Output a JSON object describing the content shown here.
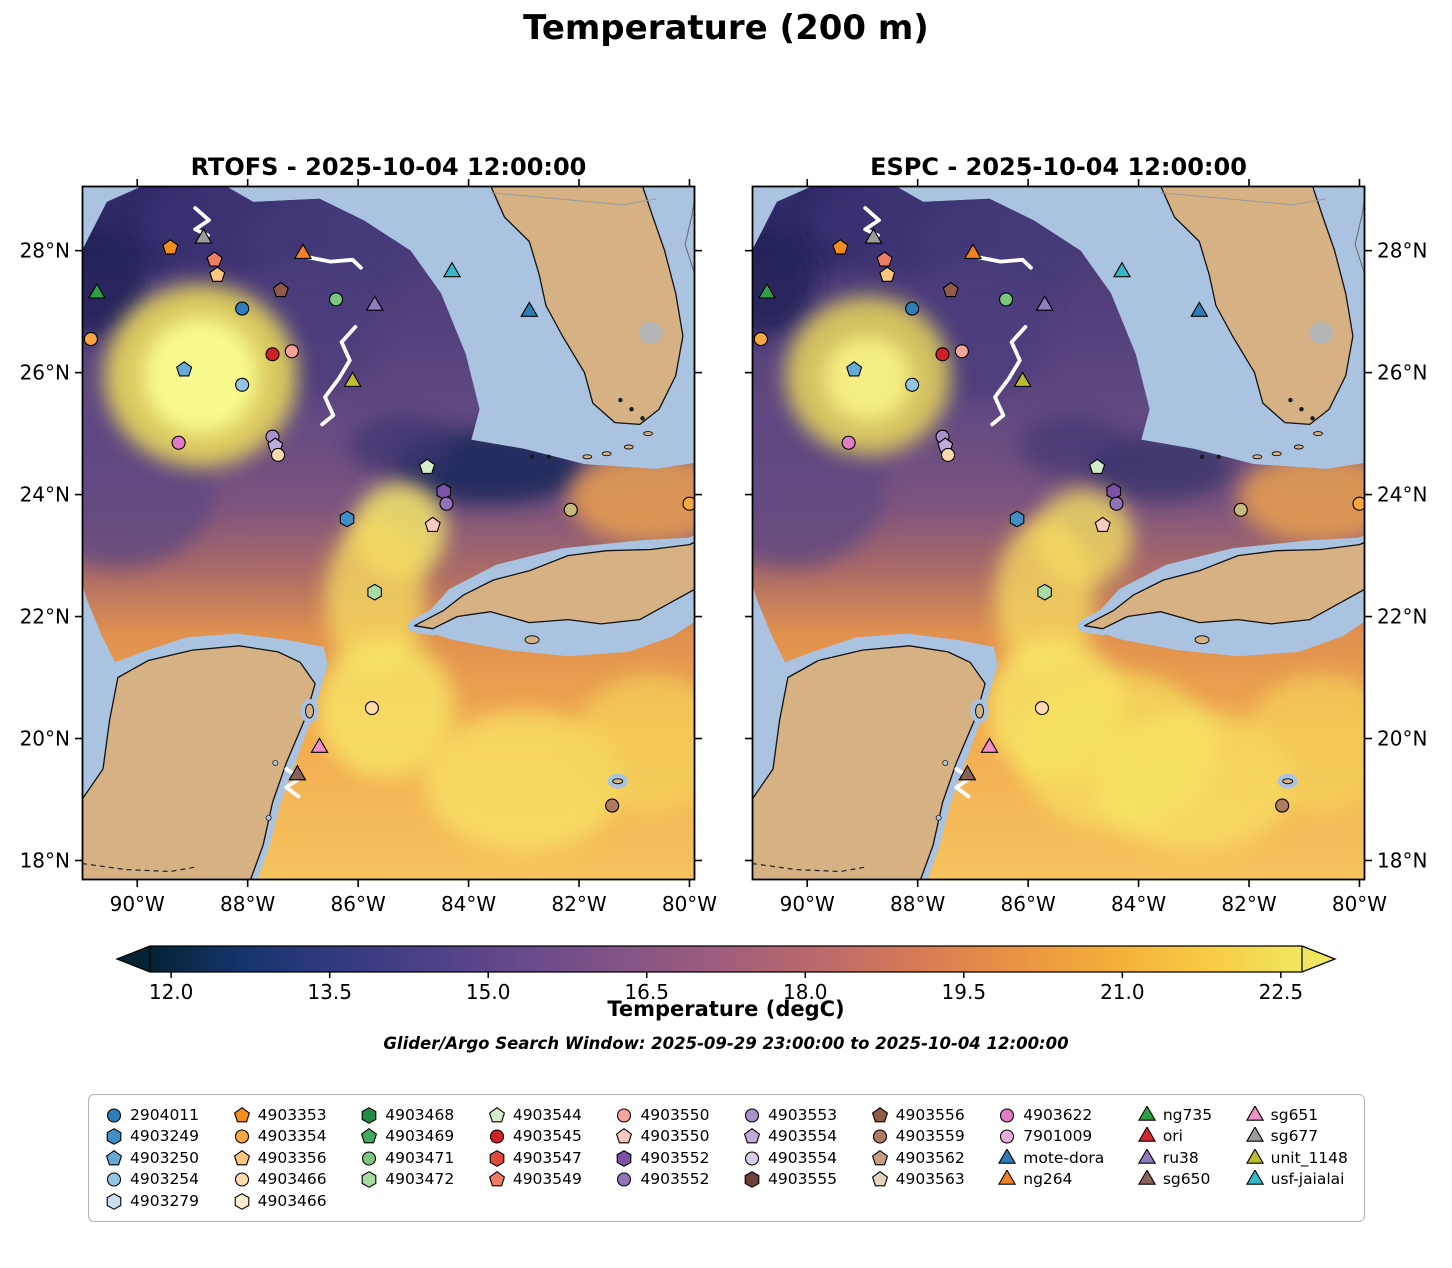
{
  "figure": {
    "title": "Temperature (200 m)",
    "caption": "Glider/Argo Search Window: 2025-09-29 23:00:00 to 2025-10-04 12:00:00"
  },
  "chart_data": {
    "type": "heatmap",
    "subtype": "geographic-temperature-field-model-comparison",
    "region": "Gulf of Mexico",
    "lon_range": [
      -91.0,
      -79.9
    ],
    "lat_range": [
      17.68,
      29.06
    ],
    "x_ticks": [
      {
        "lon": -90,
        "label": "90°W"
      },
      {
        "lon": -88,
        "label": "88°W"
      },
      {
        "lon": -86,
        "label": "86°W"
      },
      {
        "lon": -84,
        "label": "84°W"
      },
      {
        "lon": -82,
        "label": "82°W"
      },
      {
        "lon": -80,
        "label": "80°W"
      }
    ],
    "y_ticks": [
      {
        "lat": 28,
        "label": "28°N"
      },
      {
        "lat": 26,
        "label": "26°N"
      },
      {
        "lat": 24,
        "label": "24°N"
      },
      {
        "lat": 22,
        "label": "22°N"
      },
      {
        "lat": 20,
        "label": "20°N"
      },
      {
        "lat": 18,
        "label": "18°N"
      }
    ],
    "colorbar": {
      "label": "Temperature (degC)",
      "units": "degC",
      "ticks": [
        12.0,
        13.5,
        15.0,
        16.5,
        18.0,
        19.5,
        21.0,
        22.5
      ],
      "vmin": 11.8,
      "vmax": 22.7,
      "extend": "both",
      "colors": [
        "#042333",
        "#15356e",
        "#343a80",
        "#4f4288",
        "#6a4b8a",
        "#855486",
        "#a05e7b",
        "#bc6a6a",
        "#d67b55",
        "#e89343",
        "#f3ae39",
        "#f8ca43",
        "#f0e65f"
      ]
    },
    "colors": {
      "ocean_mask": "#a9c3e1",
      "land": "#d6b184",
      "coastline": "#111111",
      "lake": "#b5b5b5",
      "track": "#ffffff"
    },
    "field_base_stops": [
      [
        0,
        "#463a76"
      ],
      [
        0.2,
        "#52407c"
      ],
      [
        0.34,
        "#634a82"
      ],
      [
        0.46,
        "#7d547f"
      ],
      [
        0.55,
        "#a96a68"
      ],
      [
        0.64,
        "#e0904f"
      ],
      [
        0.78,
        "#f2ab50"
      ],
      [
        1,
        "#f6c55e"
      ]
    ],
    "panels": [
      {
        "id": "rtofs",
        "title": "RTOFS - 2025-10-04 12:00:00",
        "ylabel_side": "left",
        "blobs": [
          {
            "lon": -90.2,
            "lat": 28.6,
            "rx": 1.7,
            "ry": 1.0,
            "color": "#2f2b66",
            "opacity": 0.9
          },
          {
            "lon": -90.85,
            "lat": 27.5,
            "rx": 1.0,
            "ry": 0.9,
            "color": "#232058",
            "opacity": 0.85
          },
          {
            "lon": -88.2,
            "lat": 28.5,
            "rx": 1.7,
            "ry": 0.9,
            "color": "#3a3372",
            "opacity": 0.8
          },
          {
            "lon": -86.5,
            "lat": 28.1,
            "rx": 1.5,
            "ry": 0.9,
            "color": "#453a79",
            "opacity": 0.7
          },
          {
            "lon": -86.9,
            "lat": 26.7,
            "rx": 1.3,
            "ry": 1.1,
            "color": "#4c3c7c",
            "opacity": 0.8
          },
          {
            "lon": -90.3,
            "lat": 24.1,
            "rx": 1.7,
            "ry": 1.3,
            "color": "#5c4682",
            "opacity": 0.75
          },
          {
            "lon": -88.85,
            "lat": 25.95,
            "rx": 1.75,
            "ry": 1.5,
            "color": "#e8d75c",
            "opacity": 0.9
          },
          {
            "lon": -88.85,
            "lat": 25.95,
            "rx": 1.05,
            "ry": 0.95,
            "color": "#f9fa8e",
            "opacity": 1
          },
          {
            "lon": -83.6,
            "lat": 24.45,
            "rx": 1.7,
            "ry": 0.62,
            "color": "#1f2c5c",
            "opacity": 0.9
          },
          {
            "lon": -85.2,
            "lat": 24.8,
            "rx": 0.95,
            "ry": 0.5,
            "color": "#3b366f",
            "opacity": 0.7
          },
          {
            "lon": -85.25,
            "lat": 23.4,
            "rx": 0.85,
            "ry": 0.8,
            "color": "#f3e76a",
            "opacity": 0.85
          },
          {
            "lon": -85.7,
            "lat": 22.3,
            "rx": 0.9,
            "ry": 1.3,
            "color": "#f5d85e",
            "opacity": 0.8
          },
          {
            "lon": -85.5,
            "lat": 20.5,
            "rx": 1.25,
            "ry": 1.15,
            "color": "#f7e766",
            "opacity": 0.8
          },
          {
            "lon": -83.0,
            "lat": 19.3,
            "rx": 1.8,
            "ry": 1.15,
            "color": "#f7e766",
            "opacity": 0.7
          },
          {
            "lon": -80.7,
            "lat": 19.9,
            "rx": 1.4,
            "ry": 1.15,
            "color": "#f4d65a",
            "opacity": 0.65
          },
          {
            "lon": -80.7,
            "lat": 23.95,
            "rx": 1.5,
            "ry": 0.75,
            "color": "#f0a44c",
            "opacity": 0.8
          }
        ]
      },
      {
        "id": "espc",
        "title": "ESPC - 2025-10-04 12:00:00",
        "ylabel_side": "right",
        "blobs": [
          {
            "lon": -90.2,
            "lat": 28.6,
            "rx": 1.7,
            "ry": 1.0,
            "color": "#2f2b66",
            "opacity": 0.9
          },
          {
            "lon": -90.85,
            "lat": 27.5,
            "rx": 1.0,
            "ry": 0.9,
            "color": "#232058",
            "opacity": 0.85
          },
          {
            "lon": -88.2,
            "lat": 28.5,
            "rx": 1.7,
            "ry": 0.9,
            "color": "#3a3372",
            "opacity": 0.8
          },
          {
            "lon": -86.5,
            "lat": 28.1,
            "rx": 1.5,
            "ry": 0.9,
            "color": "#453a79",
            "opacity": 0.7
          },
          {
            "lon": -86.9,
            "lat": 26.7,
            "rx": 1.3,
            "ry": 1.1,
            "color": "#4c3c7c",
            "opacity": 0.8
          },
          {
            "lon": -90.3,
            "lat": 24.1,
            "rx": 1.7,
            "ry": 1.3,
            "color": "#5c4682",
            "opacity": 0.75
          },
          {
            "lon": -88.9,
            "lat": 25.95,
            "rx": 1.5,
            "ry": 1.3,
            "color": "#e8d75c",
            "opacity": 0.85
          },
          {
            "lon": -88.9,
            "lat": 25.9,
            "rx": 0.8,
            "ry": 0.7,
            "color": "#f7f185",
            "opacity": 0.95
          },
          {
            "lon": -83.6,
            "lat": 24.45,
            "rx": 1.3,
            "ry": 0.55,
            "color": "#2e3168",
            "opacity": 0.7
          },
          {
            "lon": -85.2,
            "lat": 24.8,
            "rx": 0.95,
            "ry": 0.5,
            "color": "#3b366f",
            "opacity": 0.6
          },
          {
            "lon": -85.0,
            "lat": 23.3,
            "rx": 0.9,
            "ry": 0.8,
            "color": "#f2dd62",
            "opacity": 0.8
          },
          {
            "lon": -85.7,
            "lat": 22.3,
            "rx": 0.9,
            "ry": 1.3,
            "color": "#f5d85e",
            "opacity": 0.8
          },
          {
            "lon": -85.5,
            "lat": 20.5,
            "rx": 1.25,
            "ry": 1.15,
            "color": "#f7e766",
            "opacity": 0.8
          },
          {
            "lon": -84.4,
            "lat": 19.8,
            "rx": 1.8,
            "ry": 1.3,
            "color": "#f6e25f",
            "opacity": 0.7
          },
          {
            "lon": -83.0,
            "lat": 19.3,
            "rx": 1.8,
            "ry": 1.15,
            "color": "#f7e766",
            "opacity": 0.65
          },
          {
            "lon": -80.7,
            "lat": 19.9,
            "rx": 1.4,
            "ry": 1.15,
            "color": "#f4d65a",
            "opacity": 0.65
          },
          {
            "lon": -80.7,
            "lat": 23.95,
            "rx": 1.5,
            "ry": 0.75,
            "color": "#f0a44c",
            "opacity": 0.8
          }
        ]
      }
    ],
    "legend_columns": [
      [
        {
          "label": "2904011",
          "shape": "circle",
          "color": "#2e7ebc"
        },
        {
          "label": "4903249",
          "shape": "hexagon",
          "color": "#3f8fc5"
        },
        {
          "label": "4903250",
          "shape": "pentagon",
          "color": "#66abd8"
        },
        {
          "label": "4903254",
          "shape": "circle",
          "color": "#93c4e4"
        },
        {
          "label": "4903279",
          "shape": "hexagon",
          "color": "#c9def1"
        }
      ],
      [
        {
          "label": "4903353",
          "shape": "pentagon",
          "color": "#f28d1e"
        },
        {
          "label": "4903354",
          "shape": "circle",
          "color": "#f9a743"
        },
        {
          "label": "4903356",
          "shape": "pentagon",
          "color": "#fcc57e"
        },
        {
          "label": "4903466",
          "shape": "circle",
          "color": "#fdd9ab"
        },
        {
          "label": "4903466",
          "shape": "hexagon",
          "color": "#feeccf"
        }
      ],
      [
        {
          "label": "4903468",
          "shape": "hexagon",
          "color": "#238b45"
        },
        {
          "label": "4903469",
          "shape": "pentagon",
          "color": "#41a85c"
        },
        {
          "label": "4903471",
          "shape": "circle",
          "color": "#79c67c"
        },
        {
          "label": "4903472",
          "shape": "hexagon",
          "color": "#a8dba2"
        }
      ],
      [
        {
          "label": "4903544",
          "shape": "pentagon",
          "color": "#d2ecc8"
        },
        {
          "label": "4903545",
          "shape": "circle",
          "color": "#cf2128"
        },
        {
          "label": "4903547",
          "shape": "hexagon",
          "color": "#df4b3b"
        },
        {
          "label": "4903549",
          "shape": "pentagon",
          "color": "#ee7d66"
        }
      ],
      [
        {
          "label": "4903550",
          "shape": "circle",
          "color": "#f7a49d"
        },
        {
          "label": "4903550",
          "shape": "pentagon",
          "color": "#fbc9c2"
        },
        {
          "label": "4903552",
          "shape": "hexagon",
          "color": "#7b52a5"
        },
        {
          "label": "4903552",
          "shape": "circle",
          "color": "#9273b9"
        }
      ],
      [
        {
          "label": "4903553",
          "shape": "circle",
          "color": "#a991ca"
        },
        {
          "label": "4903554",
          "shape": "pentagon",
          "color": "#c0abd9"
        },
        {
          "label": "4903554",
          "shape": "circle",
          "color": "#d9cce9"
        },
        {
          "label": "4903555",
          "shape": "hexagon",
          "color": "#6f4136"
        }
      ],
      [
        {
          "label": "4903556",
          "shape": "pentagon",
          "color": "#905b47"
        },
        {
          "label": "4903559",
          "shape": "circle",
          "color": "#ac7b61"
        },
        {
          "label": "4903562",
          "shape": "pentagon",
          "color": "#c89e82"
        },
        {
          "label": "4903563",
          "shape": "pentagon",
          "color": "#e6d3be"
        }
      ],
      [
        {
          "label": "4903622",
          "shape": "circle",
          "color": "#e07cc3"
        },
        {
          "label": "7901009",
          "shape": "circle",
          "color": "#eeacda"
        },
        {
          "label": "mote-dora",
          "shape": "triangle",
          "color": "#2d7db8"
        },
        {
          "label": "ng264",
          "shape": "triangle",
          "color": "#f58220"
        }
      ],
      [
        {
          "label": "ng735",
          "shape": "triangle",
          "color": "#2f9e44"
        },
        {
          "label": "ori",
          "shape": "triangle",
          "color": "#d7282f"
        },
        {
          "label": "ru38",
          "shape": "triangle",
          "color": "#8f7bc0"
        },
        {
          "label": "sg650",
          "shape": "triangle",
          "color": "#8a6357"
        }
      ],
      [
        {
          "label": "sg651",
          "shape": "triangle",
          "color": "#f090c8"
        },
        {
          "label": "sg677",
          "shape": "triangle",
          "color": "#9c9c9c"
        },
        {
          "label": "unit_1148",
          "shape": "triangle",
          "color": "#bcbc2e"
        },
        {
          "label": "usf-jaialai",
          "shape": "triangle",
          "color": "#35b8c8"
        }
      ]
    ],
    "markers": [
      {
        "id": "ng735",
        "shape": "triangle",
        "color": "#2f9e44",
        "lon": -90.73,
        "lat": 27.3
      },
      {
        "id": "4903354",
        "shape": "circle",
        "color": "#f9a743",
        "lon": -90.84,
        "lat": 26.55
      },
      {
        "id": "4903353",
        "shape": "pentagon",
        "color": "#f28d1e",
        "lon": -89.4,
        "lat": 28.05
      },
      {
        "id": "sg677",
        "shape": "triangle",
        "color": "#9c9c9c",
        "lon": -88.8,
        "lat": 28.2
      },
      {
        "id": "4903549",
        "shape": "pentagon",
        "color": "#ee7d66",
        "lon": -88.6,
        "lat": 27.85
      },
      {
        "id": "4903356",
        "shape": "pentagon",
        "color": "#fcc57e",
        "lon": -88.55,
        "lat": 27.6
      },
      {
        "id": "ng264",
        "shape": "triangle",
        "color": "#f58220",
        "lon": -87.0,
        "lat": 27.95
      },
      {
        "id": "4903556",
        "shape": "pentagon",
        "color": "#905b47",
        "lon": -87.4,
        "lat": 27.35
      },
      {
        "id": "2904011",
        "shape": "circle",
        "color": "#2e7ebc",
        "lon": -88.1,
        "lat": 27.05
      },
      {
        "id": "4903471",
        "shape": "circle",
        "color": "#79c67c",
        "lon": -86.4,
        "lat": 27.2
      },
      {
        "id": "ru38",
        "shape": "triangle",
        "color": "#8f7bc0",
        "lon": -85.7,
        "lat": 27.1
      },
      {
        "id": "usf-jaialai",
        "shape": "triangle",
        "color": "#35b8c8",
        "lon": -84.3,
        "lat": 27.65
      },
      {
        "id": "mote-dora",
        "shape": "triangle",
        "color": "#2d7db8",
        "lon": -82.9,
        "lat": 27.0
      },
      {
        "id": "4903545",
        "shape": "circle",
        "color": "#cf2128",
        "lon": -87.55,
        "lat": 26.3
      },
      {
        "id": "4903550",
        "shape": "circle",
        "color": "#f7a49d",
        "lon": -87.2,
        "lat": 26.35
      },
      {
        "id": "unit_1148",
        "shape": "triangle",
        "color": "#bcbc2e",
        "lon": -86.1,
        "lat": 25.85
      },
      {
        "id": "4903250",
        "shape": "pentagon",
        "color": "#66abd8",
        "lon": -89.15,
        "lat": 26.05
      },
      {
        "id": "4903254",
        "shape": "circle",
        "color": "#93c4e4",
        "lon": -88.1,
        "lat": 25.8
      },
      {
        "id": "4903622",
        "shape": "circle",
        "color": "#e07cc3",
        "lon": -89.25,
        "lat": 24.85
      },
      {
        "id": "4903553",
        "shape": "circle",
        "color": "#a991ca",
        "lon": -87.55,
        "lat": 24.95
      },
      {
        "id": "4903554",
        "shape": "pentagon",
        "color": "#c0abd9",
        "lon": -87.5,
        "lat": 24.8
      },
      {
        "id": "4903466",
        "shape": "circle",
        "color": "#fdd9ab",
        "lon": -87.45,
        "lat": 24.65
      },
      {
        "id": "4903544",
        "shape": "pentagon",
        "color": "#d2ecc8",
        "lon": -84.75,
        "lat": 24.45
      },
      {
        "id": "4903552",
        "shape": "hexagon",
        "color": "#7b52a5",
        "lon": -84.45,
        "lat": 24.05
      },
      {
        "id": "4903552",
        "shape": "circle",
        "color": "#9273b9",
        "lon": -84.4,
        "lat": 23.85
      },
      {
        "id": "4903562",
        "shape": "circle",
        "color": "#c9b97c",
        "lon": -82.15,
        "lat": 23.75
      },
      {
        "id": "4903354",
        "shape": "circle",
        "color": "#f9a743",
        "lon": -80.0,
        "lat": 23.85
      },
      {
        "id": "4903249",
        "shape": "hexagon",
        "color": "#3f8fc5",
        "lon": -86.2,
        "lat": 23.6
      },
      {
        "id": "4903550",
        "shape": "pentagon",
        "color": "#fbc9c2",
        "lon": -84.65,
        "lat": 23.5
      },
      {
        "id": "4903472",
        "shape": "hexagon",
        "color": "#a8dba2",
        "lon": -85.7,
        "lat": 22.4
      },
      {
        "id": "4903466",
        "shape": "circle",
        "color": "#fdd9ab",
        "lon": -85.75,
        "lat": 20.5
      },
      {
        "id": "sg651",
        "shape": "triangle",
        "color": "#f090c8",
        "lon": -86.7,
        "lat": 19.85
      },
      {
        "id": "sg650",
        "shape": "triangle",
        "color": "#8a6357",
        "lon": -87.1,
        "lat": 19.4
      },
      {
        "id": "4903559",
        "shape": "circle",
        "color": "#ac7b61",
        "lon": -81.4,
        "lat": 18.9
      }
    ],
    "tracks": [
      [
        [
          -88.95,
          28.7
        ],
        [
          -88.7,
          28.5
        ],
        [
          -88.95,
          28.35
        ],
        [
          -88.72,
          28.25
        ]
      ],
      [
        [
          -86.95,
          27.9
        ],
        [
          -86.5,
          27.82
        ],
        [
          -86.1,
          27.85
        ],
        [
          -85.95,
          27.72
        ]
      ],
      [
        [
          -86.05,
          26.75
        ],
        [
          -86.3,
          26.5
        ],
        [
          -86.15,
          26.2
        ],
        [
          -86.35,
          25.9
        ],
        [
          -86.6,
          25.6
        ],
        [
          -86.45,
          25.3
        ],
        [
          -86.65,
          25.15
        ]
      ],
      [
        [
          -87.3,
          19.5
        ],
        [
          -87.05,
          19.35
        ],
        [
          -87.3,
          19.2
        ],
        [
          -87.08,
          19.05
        ]
      ]
    ]
  }
}
